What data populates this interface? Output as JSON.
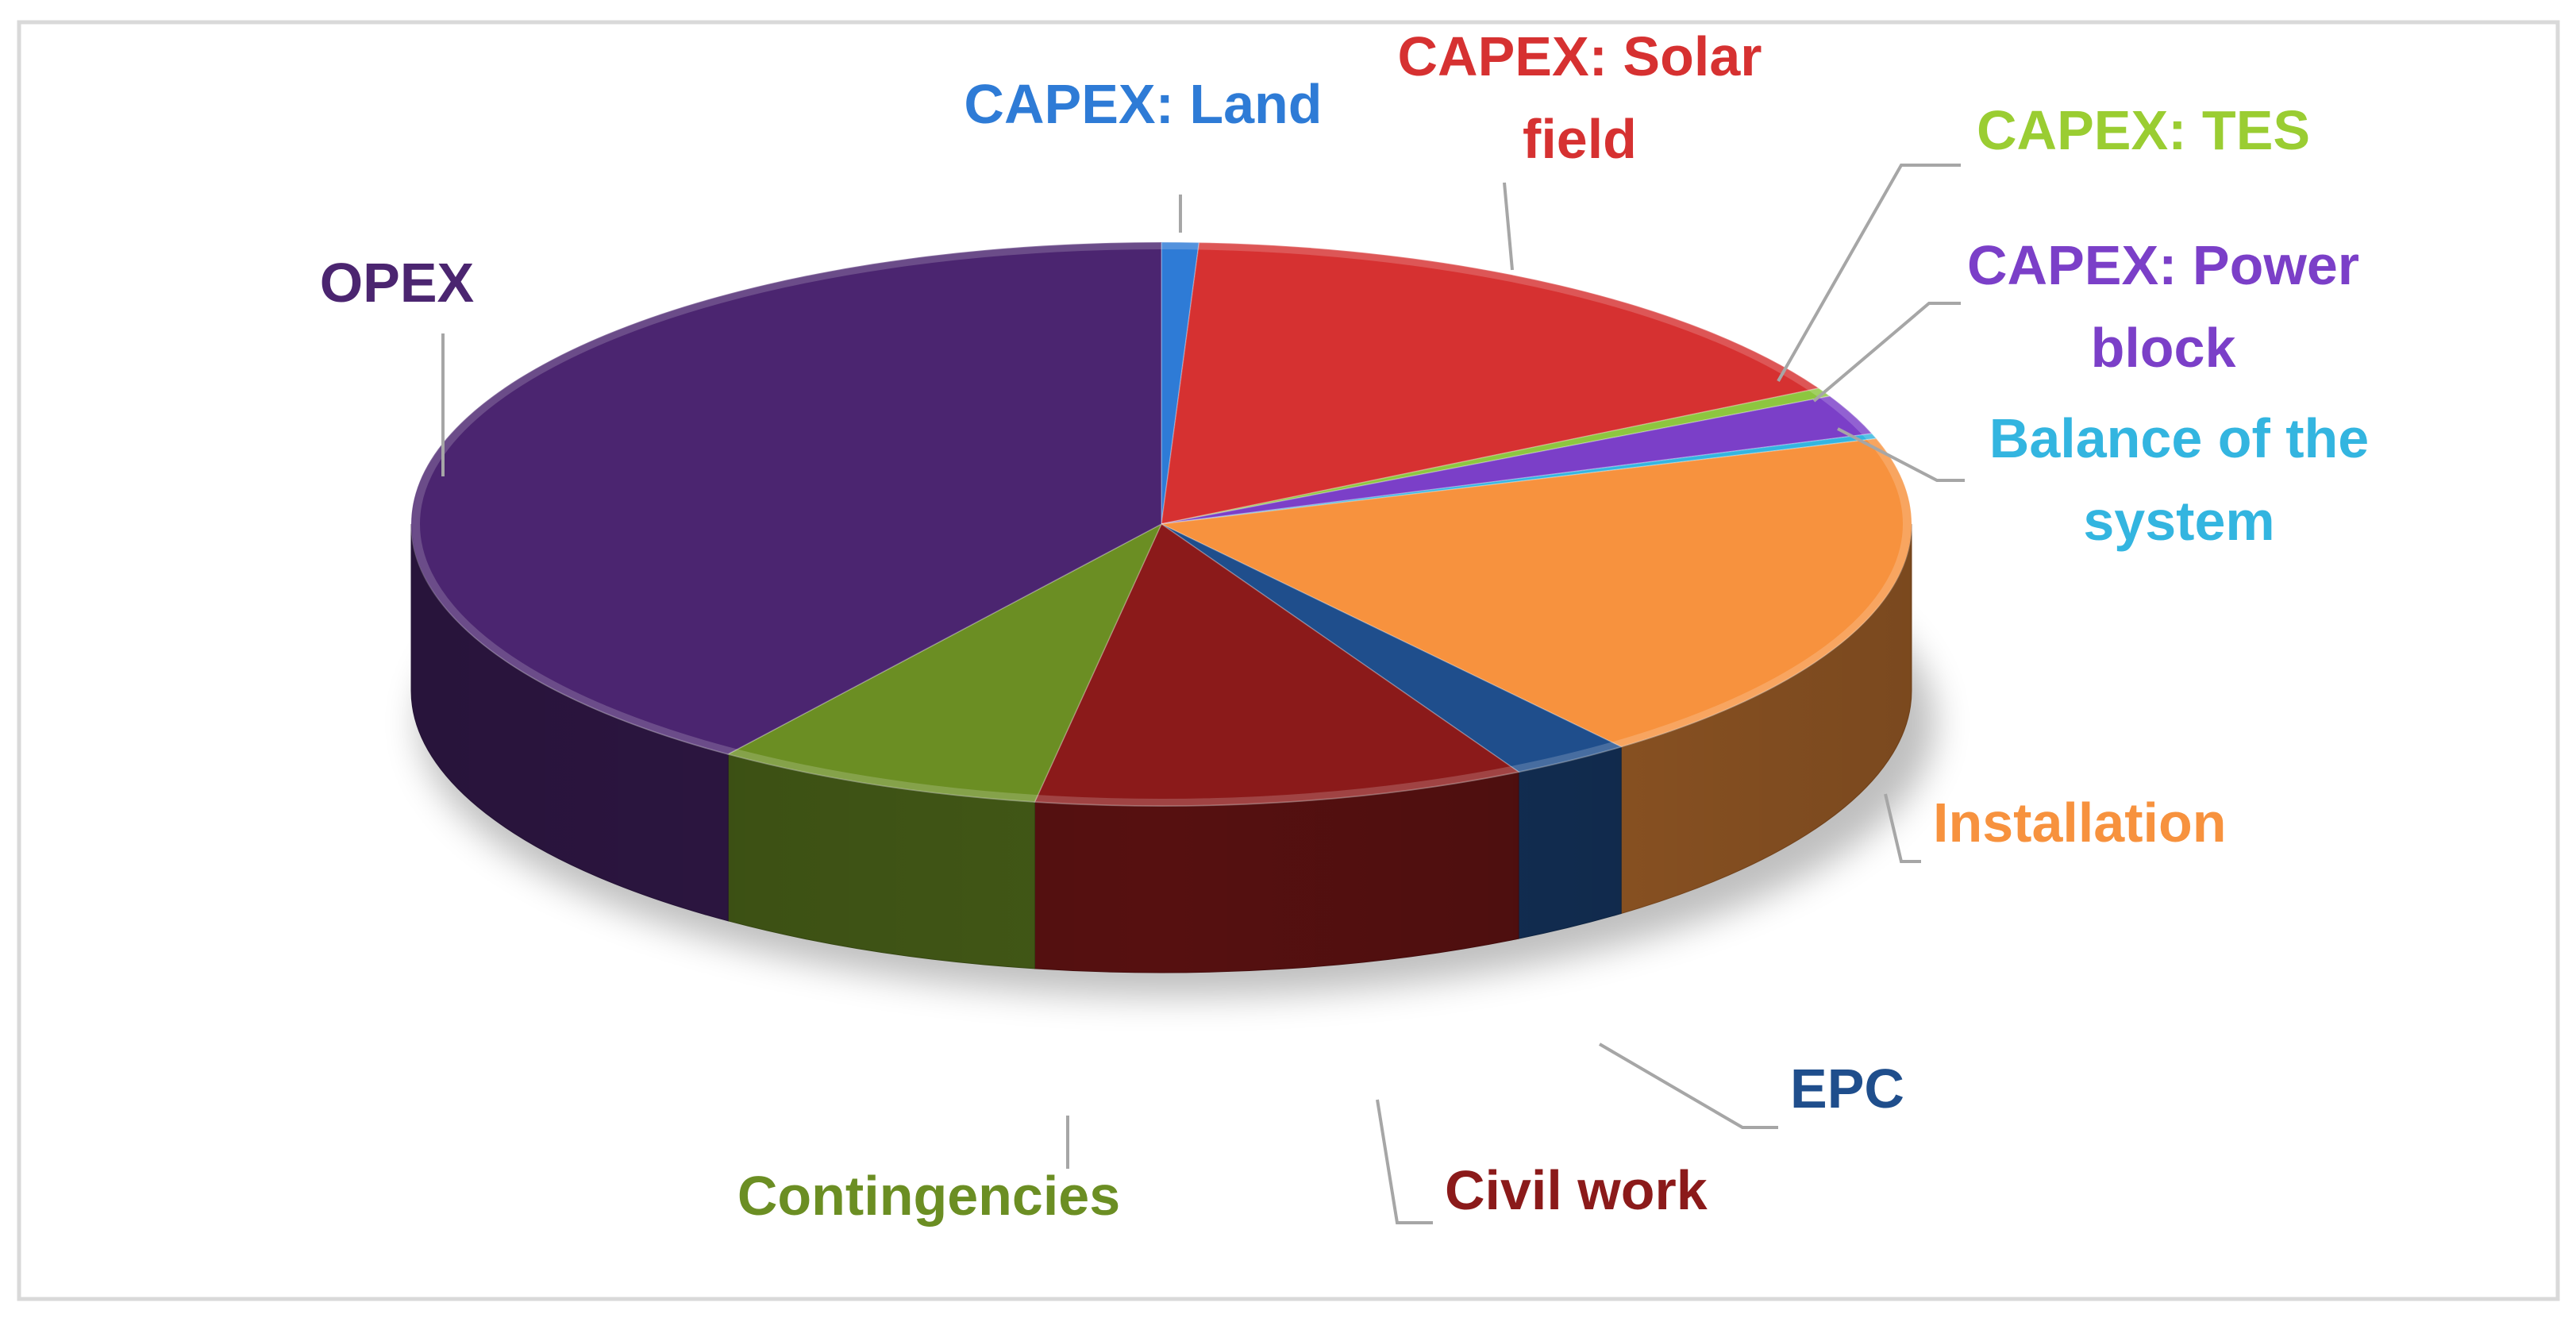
{
  "chart_data": {
    "type": "pie",
    "style": "3d",
    "title": "",
    "start_angle_deg": 0,
    "direction": "clockwise",
    "legend": "none",
    "slices": [
      {
        "key": "land",
        "label_lines": [
          "CAPEX: Land"
        ],
        "value": 0.8,
        "color": "#2E7BD6",
        "label_color": "#2E7BD6"
      },
      {
        "key": "solar",
        "label_lines": [
          "CAPEX: Solar",
          "field"
        ],
        "value": 16.2,
        "color": "#D63131",
        "label_color": "#D63131"
      },
      {
        "key": "tes",
        "label_lines": [
          "CAPEX: TES"
        ],
        "value": 0.5,
        "color": "#8DC63F",
        "label_color": "#9ACD32"
      },
      {
        "key": "powerblock",
        "label_lines": [
          "CAPEX: Power",
          "block"
        ],
        "value": 2.3,
        "color": "#7B3FC8",
        "label_color": "#7B3FC8"
      },
      {
        "key": "bos",
        "label_lines": [
          "Balance of the",
          "system"
        ],
        "value": 0.3,
        "color": "#33B5E0",
        "label_color": "#33B5E0"
      },
      {
        "key": "installation",
        "label_lines": [
          "Installation"
        ],
        "value": 19.4,
        "color": "#F7923E",
        "label_color": "#F7923E"
      },
      {
        "key": "epc",
        "label_lines": [
          "EPC"
        ],
        "value": 2.6,
        "color": "#1F4E8C",
        "label_color": "#1F4E8C"
      },
      {
        "key": "civil",
        "label_lines": [
          "Civil work"
        ],
        "value": 10.6,
        "color": "#8B1A1A",
        "label_color": "#8B1A1A"
      },
      {
        "key": "contingencies",
        "label_lines": [
          "Contingencies"
        ],
        "value": 7.1,
        "color": "#6B8E23",
        "label_color": "#6B8E23"
      },
      {
        "key": "opex",
        "label_lines": [
          "OPEX"
        ],
        "value": 40.2,
        "color": "#4B2570",
        "label_color": "#4B2570"
      }
    ]
  }
}
